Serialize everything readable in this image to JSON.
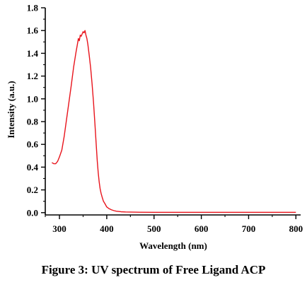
{
  "caption": "Figure 3: UV spectrum of Free Ligand ACP",
  "chart_data": {
    "type": "line",
    "title": "",
    "xlabel": "Wavelength (nm)",
    "ylabel": "Intensity (a.u.)",
    "xlim": [
      270,
      810
    ],
    "ylim": [
      -0.02,
      1.8
    ],
    "xticks": [
      300,
      400,
      500,
      600,
      700,
      800
    ],
    "yticks": [
      0.0,
      0.2,
      0.4,
      0.6,
      0.8,
      1.0,
      1.2,
      1.4,
      1.6,
      1.8
    ],
    "ytick_labels": [
      "0.0",
      "0.2",
      "0.4",
      "0.6",
      "0.8",
      "1.0",
      "1.2",
      "1.4",
      "1.6",
      "1.8"
    ],
    "grid": false,
    "series": [
      {
        "color": "#e8141c",
        "x": [
          284,
          288,
          292,
          296,
          300,
          305,
          310,
          315,
          320,
          325,
          330,
          335,
          338,
          340,
          342,
          344,
          346,
          348,
          350,
          352,
          354,
          356,
          358,
          360,
          363,
          366,
          369,
          372,
          375,
          378,
          380,
          382,
          384,
          386,
          388,
          390,
          393,
          396,
          400,
          405,
          410,
          415,
          420,
          430,
          440,
          450,
          470,
          500,
          550,
          600,
          700,
          800
        ],
        "y": [
          0.44,
          0.43,
          0.43,
          0.45,
          0.49,
          0.55,
          0.67,
          0.82,
          0.97,
          1.12,
          1.28,
          1.41,
          1.48,
          1.53,
          1.51,
          1.56,
          1.55,
          1.57,
          1.59,
          1.58,
          1.6,
          1.56,
          1.53,
          1.48,
          1.38,
          1.27,
          1.13,
          0.97,
          0.78,
          0.58,
          0.45,
          0.35,
          0.27,
          0.21,
          0.17,
          0.14,
          0.1,
          0.08,
          0.05,
          0.035,
          0.025,
          0.018,
          0.013,
          0.008,
          0.006,
          0.005,
          0.004,
          0.003,
          0.003,
          0.003,
          0.003,
          0.003
        ]
      }
    ]
  }
}
